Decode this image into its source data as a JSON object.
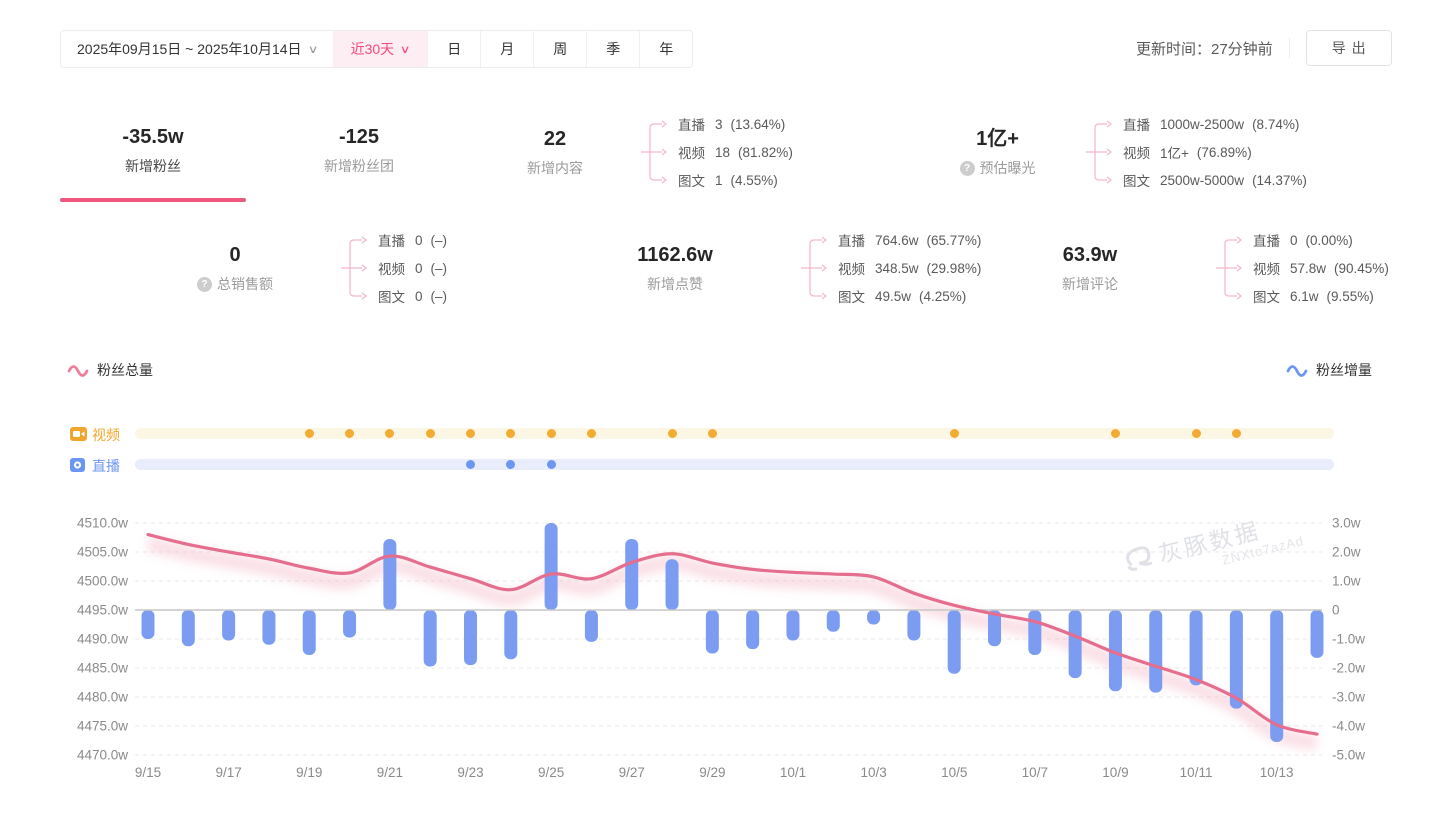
{
  "header": {
    "date_range": "2025年09月15日 ~ 2025年10月14日",
    "chevron": "∨",
    "quick_range": "近30天",
    "period_tabs": [
      "日",
      "月",
      "周",
      "季",
      "年"
    ],
    "update_time": "更新时间：27分钟前",
    "export_label": "导出"
  },
  "stats": {
    "row1": [
      {
        "value": "-35.5w",
        "label": "新增粉丝"
      },
      {
        "value": "-125",
        "label": "新增粉丝团"
      },
      {
        "value": "22",
        "label": "新增内容",
        "breakdown": [
          {
            "name": "直播",
            "value": "3",
            "pct": "(13.64%)"
          },
          {
            "name": "视频",
            "value": "18",
            "pct": "(81.82%)"
          },
          {
            "name": "图文",
            "value": "1",
            "pct": "(4.55%)"
          }
        ]
      },
      {
        "value": "1亿+",
        "label": "预估曝光",
        "breakdown": [
          {
            "name": "直播",
            "value": "1000w-2500w",
            "pct": "(8.74%)"
          },
          {
            "name": "视频",
            "value": "1亿+",
            "pct": "(76.89%)"
          },
          {
            "name": "图文",
            "value": "2500w-5000w",
            "pct": "(14.37%)"
          }
        ]
      }
    ],
    "row2": [
      {
        "value": "0",
        "label": "总销售额",
        "breakdown": [
          {
            "name": "直播",
            "value": "0",
            "pct": "(–)"
          },
          {
            "name": "视频",
            "value": "0",
            "pct": "(–)"
          },
          {
            "name": "图文",
            "value": "0",
            "pct": "(–)"
          }
        ]
      },
      {
        "value": "1162.6w",
        "label": "新增点赞",
        "breakdown": [
          {
            "name": "直播",
            "value": "764.6w",
            "pct": "(65.77%)"
          },
          {
            "name": "视频",
            "value": "348.5w",
            "pct": "(29.98%)"
          },
          {
            "name": "图文",
            "value": "49.5w",
            "pct": "(4.25%)"
          }
        ]
      },
      {
        "value": "63.9w",
        "label": "新增评论",
        "breakdown": [
          {
            "name": "直播",
            "value": "0",
            "pct": "(0.00%)"
          },
          {
            "name": "视频",
            "value": "57.8w",
            "pct": "(90.45%)"
          },
          {
            "name": "图文",
            "value": "6.1w",
            "pct": "(9.55%)"
          }
        ]
      }
    ]
  },
  "legend": {
    "total_label": "粉丝总量",
    "delta_label": "粉丝增量",
    "total_color": "#e56e8e",
    "delta_color": "#7b9cf0"
  },
  "timeline": {
    "video": {
      "label": "视频",
      "dates": [
        "9/19",
        "9/20",
        "9/21",
        "9/22",
        "9/23",
        "9/24",
        "9/25",
        "9/26",
        "9/28",
        "9/29",
        "10/5",
        "10/9",
        "10/11",
        "10/12"
      ]
    },
    "live": {
      "label": "直播",
      "dates": [
        "9/23",
        "9/24",
        "9/25"
      ]
    }
  },
  "chart_data": {
    "type": "combo",
    "x": [
      "9/15",
      "9/16",
      "9/17",
      "9/18",
      "9/19",
      "9/20",
      "9/21",
      "9/22",
      "9/23",
      "9/24",
      "9/25",
      "9/26",
      "9/27",
      "9/28",
      "9/29",
      "9/30",
      "10/1",
      "10/2",
      "10/3",
      "10/4",
      "10/5",
      "10/6",
      "10/7",
      "10/8",
      "10/9",
      "10/10",
      "10/11",
      "10/12",
      "10/13",
      "10/14"
    ],
    "series": [
      {
        "name": "粉丝总量",
        "type": "line",
        "axis": "left",
        "unit": "w",
        "color": "#e56e8e",
        "values": [
          4508.0,
          4506.3,
          4505.0,
          4503.8,
          4502.2,
          4501.4,
          4504.3,
          4502.4,
          4500.4,
          4498.5,
          4501.2,
          4500.4,
          4503.2,
          4504.7,
          4503.1,
          4502.0,
          4501.5,
          4501.2,
          4500.7,
          4497.9,
          4495.8,
          4494.3,
          4493.0,
          4490.5,
          4487.6,
          4485.3,
          4483.0,
          4479.8,
          4475.2,
          4473.6
        ]
      },
      {
        "name": "粉丝增量",
        "type": "bar",
        "axis": "right",
        "unit": "w",
        "color": "#7b9cf0",
        "values": [
          -1.0,
          -1.25,
          -1.05,
          -1.2,
          -1.55,
          -0.95,
          2.45,
          -1.95,
          -1.9,
          -1.7,
          3.0,
          -1.1,
          2.45,
          1.75,
          -1.5,
          -1.35,
          -1.05,
          -0.75,
          -0.5,
          -1.05,
          -2.2,
          -1.25,
          -1.55,
          -2.35,
          -2.8,
          -2.85,
          -2.6,
          -3.4,
          -4.55,
          -1.65
        ]
      }
    ],
    "left_axis": {
      "ticks": [
        "4510.0w",
        "4505.0w",
        "4500.0w",
        "4495.0w",
        "4490.0w",
        "4485.0w",
        "4480.0w",
        "4475.0w",
        "4470.0w"
      ],
      "min": 4470,
      "max": 4510
    },
    "right_axis": {
      "ticks": [
        "3.0w",
        "2.0w",
        "1.0w",
        "0",
        "-1.0w",
        "-2.0w",
        "-3.0w",
        "-4.0w",
        "-5.0w"
      ],
      "min": -5,
      "max": 3
    },
    "x_tick_labels": [
      "9/15",
      "9/17",
      "9/19",
      "9/21",
      "9/23",
      "9/25",
      "9/27",
      "9/29",
      "10/1",
      "10/3",
      "10/5",
      "10/7",
      "10/9",
      "10/11",
      "10/13"
    ],
    "grid": "dashed-horizontal",
    "legend_position": "top-left / top-right",
    "watermark": {
      "text": "灰豚数据",
      "subtext": "ZNXto7azAd"
    }
  }
}
